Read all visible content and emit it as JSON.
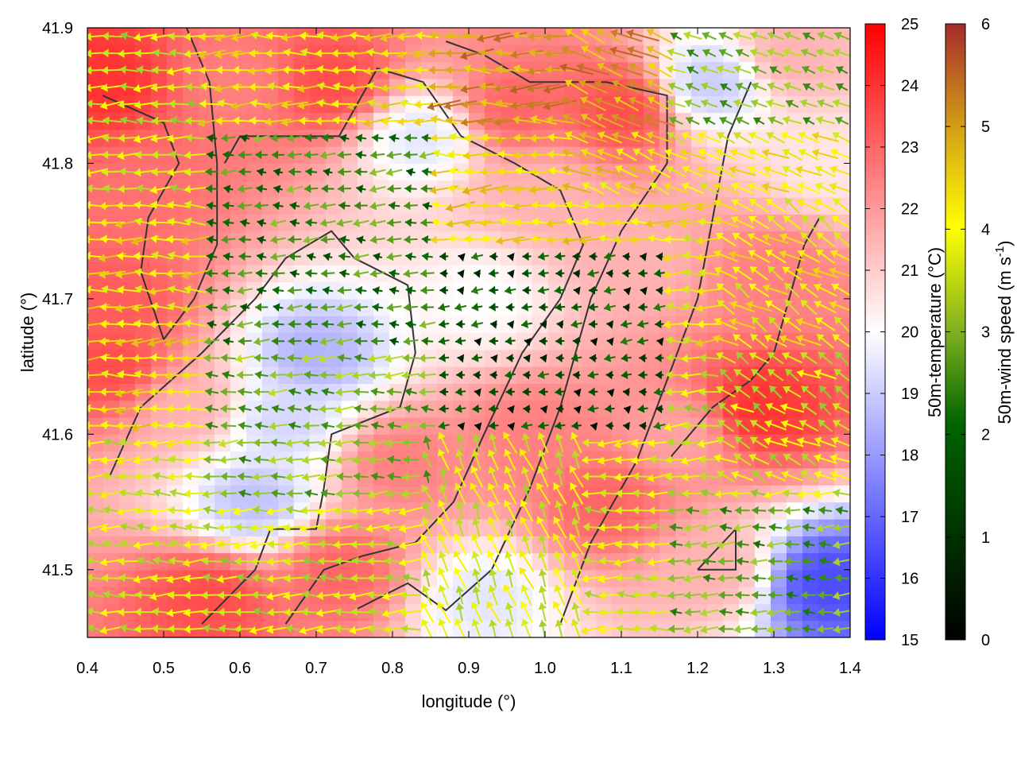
{
  "chart_data": {
    "type": "heatmap",
    "title": "",
    "xlabel": "longitude (°)",
    "ylabel": "latitude (°)",
    "xlim": [
      0.4,
      1.4
    ],
    "ylim": [
      41.45,
      41.9
    ],
    "xticks": [
      "0.4",
      "0.5",
      "0.6",
      "0.7",
      "0.8",
      "0.9",
      "1.0",
      "1.1",
      "1.2",
      "1.3",
      "1.4"
    ],
    "yticks": [
      "41.5",
      "41.6",
      "41.7",
      "41.8",
      "41.9"
    ],
    "grid": false,
    "temperature_colorbar": {
      "label": "50m-temperature (°C)",
      "range": [
        15,
        25
      ],
      "ticks": [
        "15",
        "16",
        "17",
        "18",
        "19",
        "20",
        "21",
        "22",
        "23",
        "24",
        "25"
      ],
      "colors": [
        "#0000ff",
        "#ffffff",
        "#ff0000"
      ]
    },
    "wind_colorbar": {
      "label_main": "50m-wind speed (m s",
      "label_sup": "-1",
      "label_end": ")",
      "range": [
        0,
        6
      ],
      "ticks": [
        "0",
        "1",
        "2",
        "3",
        "4",
        "5",
        "6"
      ],
      "colors": [
        "#000000",
        "#006400",
        "#9acd32",
        "#ffff00",
        "#daa520",
        "#a52a2a"
      ]
    },
    "temperature_field": [
      {
        "lon": 0.42,
        "lat": 41.86,
        "t": 24.0
      },
      {
        "lon": 0.47,
        "lat": 41.78,
        "t": 22.8
      },
      {
        "lon": 0.44,
        "lat": 41.7,
        "t": 23.2
      },
      {
        "lon": 0.43,
        "lat": 41.65,
        "t": 23.5
      },
      {
        "lon": 0.53,
        "lat": 41.62,
        "t": 21.5
      },
      {
        "lon": 0.6,
        "lat": 41.86,
        "t": 22.5
      },
      {
        "lon": 0.72,
        "lat": 41.86,
        "t": 23.5
      },
      {
        "lon": 0.56,
        "lat": 41.48,
        "t": 23.5
      },
      {
        "lon": 0.73,
        "lat": 41.5,
        "t": 23.0
      },
      {
        "lon": 0.81,
        "lat": 41.58,
        "t": 22.5
      },
      {
        "lon": 0.7,
        "lat": 41.66,
        "t": 18.5
      },
      {
        "lon": 0.66,
        "lat": 41.61,
        "t": 19.2
      },
      {
        "lon": 0.62,
        "lat": 41.55,
        "t": 18.8
      },
      {
        "lon": 0.84,
        "lat": 41.82,
        "t": 19.5
      },
      {
        "lon": 0.96,
        "lat": 41.84,
        "t": 23.0
      },
      {
        "lon": 1.1,
        "lat": 41.84,
        "t": 23.5
      },
      {
        "lon": 1.0,
        "lat": 41.78,
        "t": 21.5
      },
      {
        "lon": 0.92,
        "lat": 41.7,
        "t": 20.0
      },
      {
        "lon": 1.12,
        "lat": 41.73,
        "t": 21.5
      },
      {
        "lon": 0.98,
        "lat": 41.6,
        "t": 22.5
      },
      {
        "lon": 1.08,
        "lat": 41.55,
        "t": 23.0
      },
      {
        "lon": 1.18,
        "lat": 41.6,
        "t": 21.8
      },
      {
        "lon": 1.28,
        "lat": 41.62,
        "t": 24.0
      },
      {
        "lon": 1.3,
        "lat": 41.72,
        "t": 22.5
      },
      {
        "lon": 1.22,
        "lat": 41.86,
        "t": 19.0
      },
      {
        "lon": 1.32,
        "lat": 41.88,
        "t": 21.5
      },
      {
        "lon": 1.37,
        "lat": 41.8,
        "t": 20.5
      },
      {
        "lon": 1.37,
        "lat": 41.49,
        "t": 16.5
      },
      {
        "lon": 1.22,
        "lat": 41.5,
        "t": 21.5
      },
      {
        "lon": 0.92,
        "lat": 41.48,
        "t": 19.5
      }
    ],
    "wind_regions": [
      {
        "lon": [
          0.4,
          0.56
        ],
        "lat": [
          41.6,
          41.78
        ],
        "speed": 3.8
      },
      {
        "lon": [
          0.4,
          0.56
        ],
        "lat": [
          41.45,
          41.6
        ],
        "speed": 3.2
      },
      {
        "lon": [
          0.4,
          0.56
        ],
        "lat": [
          41.78,
          41.9
        ],
        "speed": 3.0
      },
      {
        "lon": [
          0.56,
          0.86
        ],
        "lat": [
          41.82,
          41.9
        ],
        "speed": 3.8
      },
      {
        "lon": [
          0.56,
          0.86
        ],
        "lat": [
          41.66,
          41.82
        ],
        "speed": 1.6
      },
      {
        "lon": [
          0.56,
          0.86
        ],
        "lat": [
          41.55,
          41.66
        ],
        "speed": 2.2
      },
      {
        "lon": [
          0.56,
          0.86
        ],
        "lat": [
          41.45,
          41.55
        ],
        "speed": 3.0
      },
      {
        "lon": [
          0.86,
          1.16
        ],
        "lat": [
          41.82,
          41.9
        ],
        "speed": 4.8
      },
      {
        "lon": [
          0.86,
          1.16
        ],
        "lat": [
          41.74,
          41.82
        ],
        "speed": 4.0
      },
      {
        "lon": [
          0.86,
          1.16
        ],
        "lat": [
          41.6,
          41.74
        ],
        "speed": 0.8
      },
      {
        "lon": [
          0.86,
          1.16
        ],
        "lat": [
          41.45,
          41.6
        ],
        "speed": 3.2
      },
      {
        "lon": [
          1.16,
          1.4
        ],
        "lat": [
          41.82,
          41.9
        ],
        "speed": 2.2
      },
      {
        "lon": [
          1.16,
          1.4
        ],
        "lat": [
          41.66,
          41.82
        ],
        "speed": 3.6
      },
      {
        "lon": [
          1.16,
          1.4
        ],
        "lat": [
          41.55,
          41.66
        ],
        "speed": 3.0
      },
      {
        "lon": [
          1.16,
          1.4
        ],
        "lat": [
          41.45,
          41.55
        ],
        "speed": 2.0
      }
    ],
    "contours": [
      [
        [
          0.42,
          41.85
        ],
        [
          0.5,
          41.83
        ],
        [
          0.52,
          41.8
        ],
        [
          0.48,
          41.76
        ],
        [
          0.47,
          41.72
        ],
        [
          0.5,
          41.67
        ],
        [
          0.54,
          41.7
        ],
        [
          0.57,
          41.74
        ],
        [
          0.57,
          41.8
        ],
        [
          0.56,
          41.86
        ],
        [
          0.53,
          41.9
        ]
      ],
      [
        [
          0.43,
          41.57
        ],
        [
          0.47,
          41.62
        ],
        [
          0.55,
          41.66
        ],
        [
          0.62,
          41.7
        ],
        [
          0.66,
          41.73
        ],
        [
          0.72,
          41.75
        ],
        [
          0.75,
          41.73
        ],
        [
          0.82,
          41.71
        ],
        [
          0.83,
          41.66
        ],
        [
          0.81,
          41.62
        ],
        [
          0.72,
          41.6
        ],
        [
          0.71,
          41.56
        ],
        [
          0.7,
          41.53
        ],
        [
          0.64,
          41.53
        ],
        [
          0.62,
          41.5
        ],
        [
          0.55,
          41.46
        ]
      ],
      [
        [
          0.66,
          41.46
        ],
        [
          0.71,
          41.5
        ],
        [
          0.76,
          41.51
        ],
        [
          0.83,
          41.52
        ],
        [
          0.88,
          41.55
        ],
        [
          0.92,
          41.6
        ],
        [
          0.97,
          41.66
        ],
        [
          1.02,
          41.7
        ],
        [
          1.05,
          41.74
        ],
        [
          1.02,
          41.78
        ],
        [
          0.96,
          41.8
        ],
        [
          0.89,
          41.82
        ],
        [
          0.84,
          41.86
        ],
        [
          0.78,
          41.87
        ],
        [
          0.73,
          41.82
        ],
        [
          0.6,
          41.82
        ],
        [
          0.58,
          41.8
        ]
      ],
      [
        [
          0.75,
          41.47
        ],
        [
          0.82,
          41.49
        ],
        [
          0.87,
          41.47
        ],
        [
          0.93,
          41.5
        ],
        [
          0.98,
          41.56
        ],
        [
          1.02,
          41.62
        ],
        [
          1.06,
          41.7
        ],
        [
          1.1,
          41.75
        ],
        [
          1.16,
          41.8
        ],
        [
          1.16,
          41.85
        ],
        [
          1.08,
          41.86
        ],
        [
          0.98,
          41.86
        ],
        [
          0.92,
          41.88
        ],
        [
          0.87,
          41.89
        ]
      ],
      [
        [
          1.02,
          41.46
        ],
        [
          1.06,
          41.52
        ],
        [
          1.12,
          41.58
        ],
        [
          1.16,
          41.64
        ],
        [
          1.2,
          41.7
        ],
        [
          1.22,
          41.76
        ],
        [
          1.24,
          41.82
        ],
        [
          1.27,
          41.86
        ]
      ],
      [
        [
          1.2,
          41.5
        ],
        [
          1.25,
          41.5
        ],
        [
          1.25,
          41.53
        ],
        [
          1.2,
          41.5
        ]
      ],
      [
        [
          1.16,
          41.58
        ],
        [
          1.22,
          41.62
        ],
        [
          1.27,
          41.64
        ],
        [
          1.3,
          41.66
        ],
        [
          1.32,
          41.7
        ],
        [
          1.34,
          41.74
        ],
        [
          1.36,
          41.76
        ]
      ]
    ]
  }
}
